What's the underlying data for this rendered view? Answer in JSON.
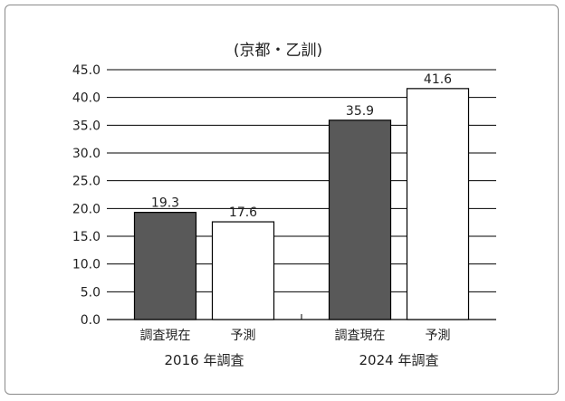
{
  "chart_data": {
    "type": "bar",
    "title": "(京都・乙訓)",
    "ylim": [
      0,
      45
    ],
    "yticks": [
      "0.0",
      "5.0",
      "10.0",
      "15.0",
      "20.0",
      "25.0",
      "30.0",
      "35.0",
      "40.0",
      "45.0"
    ],
    "grid": true,
    "groups": [
      {
        "label": "2016 年調査",
        "bars": [
          {
            "label": "調査現在",
            "value": 19.3,
            "display": "19.3",
            "color": "#595959"
          },
          {
            "label": "予測",
            "value": 17.6,
            "display": "17.6",
            "color": "#ffffff"
          }
        ]
      },
      {
        "label": "2024 年調査",
        "bars": [
          {
            "label": "調査現在",
            "value": 35.9,
            "display": "35.9",
            "color": "#595959"
          },
          {
            "label": "予測",
            "value": 41.6,
            "display": "41.6",
            "color": "#ffffff"
          }
        ]
      }
    ]
  }
}
